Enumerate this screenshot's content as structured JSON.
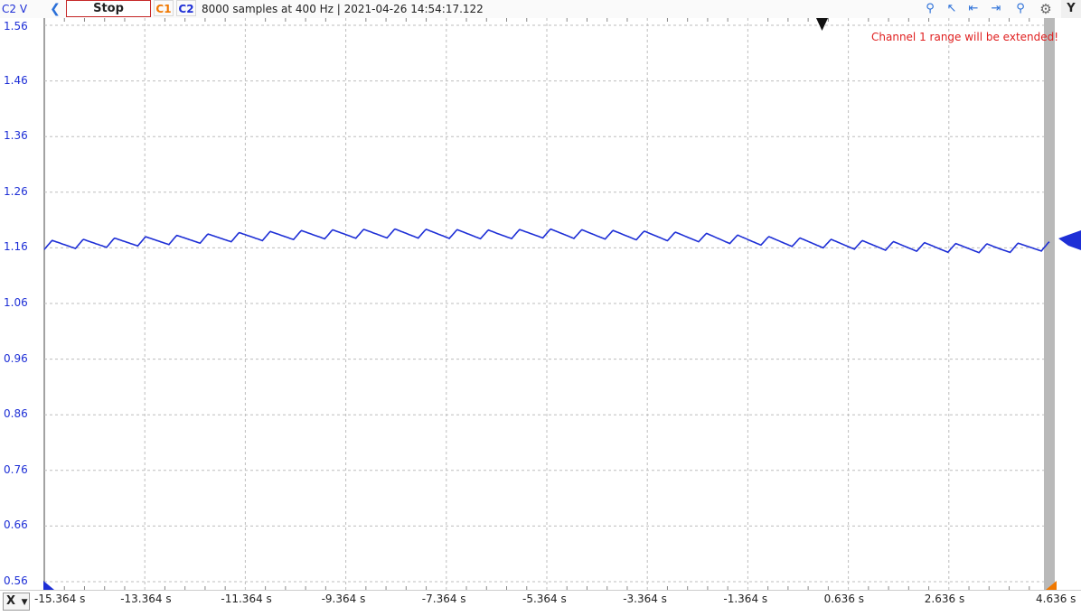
{
  "toolbar": {
    "y_unit": "C2 V",
    "stop_label": "Stop",
    "c1_label": "C1",
    "c2_label": "C2",
    "info": "8000 samples at 400 Hz | 2021-04-26 14:54:17.122",
    "y_button": "Y",
    "icons": [
      "zoom-in-icon",
      "cursor-pointer-icon",
      "align-left-icon",
      "align-right-icon",
      "zoom-out-icon",
      "settings-gear-icon"
    ]
  },
  "x_button": "X",
  "warning": "Channel 1 range will be extended!",
  "colors": {
    "c1": "#f07800",
    "c2": "#1e2fd6",
    "warning": "#e02020",
    "grid": "#bdbdbd"
  },
  "chart_data": {
    "type": "line",
    "xlabel": "",
    "ylabel": "C2 V",
    "xlim": [
      -15.364,
      4.636
    ],
    "ylim": [
      0.56,
      1.56
    ],
    "x_ticks": [
      "-15.364 s",
      "-13.364 s",
      "-11.364 s",
      "-9.364 s",
      "-7.364 s",
      "-5.364 s",
      "-3.364 s",
      "-1.364 s",
      "0.636 s",
      "2.636 s",
      "4.636 s"
    ],
    "y_ticks": [
      "1.56",
      "1.46",
      "1.36",
      "1.26",
      "1.16",
      "1.06",
      "0.96",
      "0.86",
      "0.76",
      "0.66",
      "0.56"
    ],
    "grid": true,
    "series": [
      {
        "name": "C2",
        "x": [
          -15.364,
          -14.364,
          -13.364,
          -12.364,
          -11.364,
          -10.364,
          -9.364,
          -8.364,
          -7.364,
          -6.364,
          -5.364,
          -4.364,
          -3.364,
          -2.364,
          -1.364,
          -0.364,
          0.636,
          1.636,
          2.636,
          3.636,
          4.636
        ],
        "values": [
          1.165,
          1.168,
          1.172,
          1.176,
          1.18,
          1.183,
          1.185,
          1.186,
          1.185,
          1.184,
          1.186,
          1.184,
          1.182,
          1.179,
          1.174,
          1.17,
          1.166,
          1.163,
          1.16,
          1.159,
          1.163
        ]
      }
    ]
  }
}
